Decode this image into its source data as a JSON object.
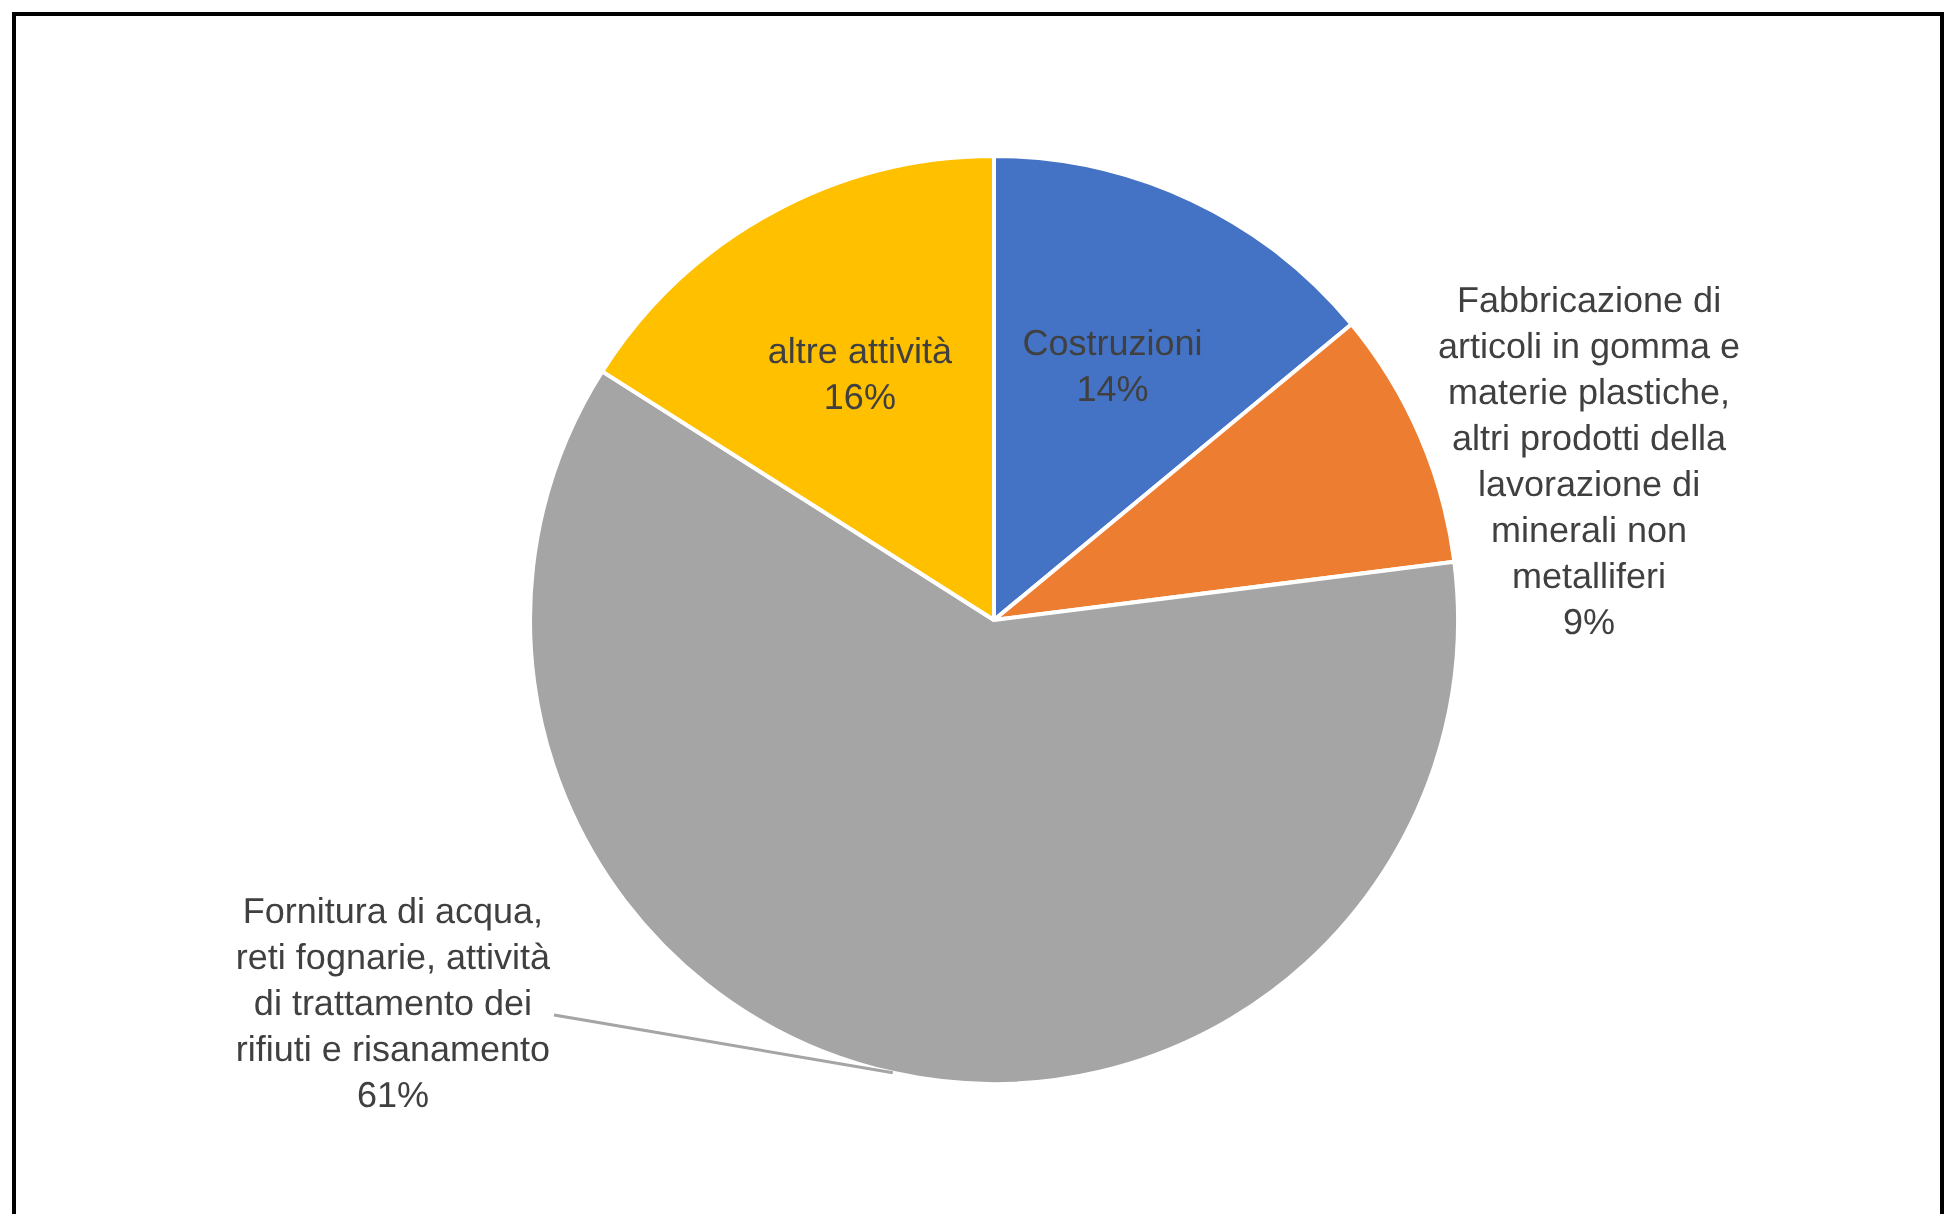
{
  "chart_data": {
    "type": "pie",
    "categories": [
      "Costruzioni",
      "Fabbricazione di articoli in gomma e materie plastiche, altri prodotti della lavorazione di minerali non metalliferi",
      "Fornitura di acqua, reti fognarie, attività di trattamento dei rifiuti e risanamento",
      "altre attività"
    ],
    "values": [
      14,
      9,
      61,
      16
    ],
    "value_labels": [
      "14%",
      "9%",
      "61%",
      "16%"
    ],
    "colors": [
      "#4472c4",
      "#ed7d31",
      "#a5a5a5",
      "#ffc000"
    ],
    "legend": false
  }
}
